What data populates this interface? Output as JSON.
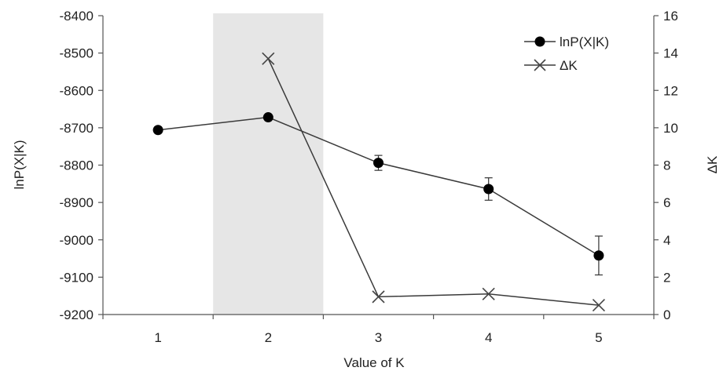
{
  "chart_data": {
    "type": "line",
    "x": [
      1,
      2,
      3,
      4,
      5
    ],
    "x_ticks": [
      "1",
      "2",
      "3",
      "4",
      "5"
    ],
    "xlabel": "Value of K",
    "ylabel_left": "lnP(X|K)",
    "ylabel_right": "ΔK",
    "ylim_left": [
      -9200,
      -8400
    ],
    "yticks_left": [
      "-8400",
      "-8500",
      "-8600",
      "-8700",
      "-8800",
      "-8900",
      "-9000",
      "-9100",
      "-9200"
    ],
    "ylim_right": [
      0,
      16
    ],
    "yticks_right": [
      "16",
      "14",
      "12",
      "10",
      "8",
      "6",
      "4",
      "2",
      "0"
    ],
    "highlight_band_k": 2,
    "series": [
      {
        "name": "lnP(X|K)",
        "axis": "left",
        "marker": "circle",
        "values": [
          -8706,
          -8672,
          -8794,
          -8864,
          -9042
        ],
        "error": [
          0,
          0,
          20,
          30,
          52
        ]
      },
      {
        "name": "ΔK",
        "axis": "right",
        "marker": "x",
        "values": [
          null,
          13.7,
          0.95,
          1.1,
          0.5
        ]
      }
    ],
    "legend_position": "top-right",
    "grid": false,
    "colors": {
      "line": "#3a3a3a",
      "marker": "#000000",
      "band": "#e6e6e6"
    }
  }
}
